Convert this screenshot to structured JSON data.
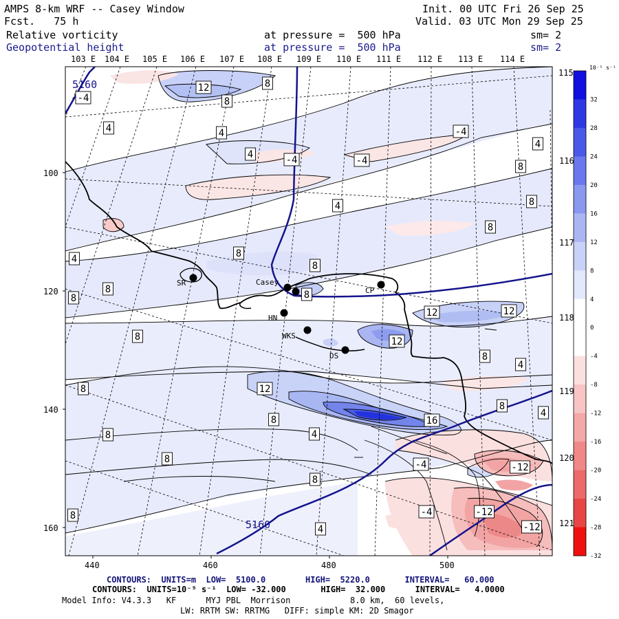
{
  "header": {
    "model": "AMPS 8-km WRF -- Casey Window",
    "fcst": "Fcst.   75 h",
    "init": "Init. 00 UTC Fri 26 Sep 25",
    "valid": "Valid. 03 UTC Mon 29 Sep 25",
    "field1_name": "Relative vorticity",
    "field1_level": "at pressure =  500 hPa",
    "field1_sm": "sm= 2",
    "field2_name": "Geopotential height",
    "field2_level": "at pressure =  500 hPa",
    "field2_sm": "sm= 2"
  },
  "top_longitudes": [
    "103 E",
    "104 E",
    "105 E",
    "106 E",
    "107 E",
    "108 E",
    "109 E",
    "110 E",
    "111 E",
    "112 E",
    "113 E",
    "114 E",
    "115 E"
  ],
  "right_longitudes": [
    "116 E",
    "117 E",
    "118 E",
    "119 E",
    "120 E",
    "121 E"
  ],
  "x_ticks": [
    440,
    460,
    480,
    500
  ],
  "y_ticks": [
    100,
    120,
    140,
    160
  ],
  "colorbar": {
    "unit": "10⁻⁵ s⁻¹",
    "labels": [
      "32",
      "28",
      "24",
      "20",
      "16",
      "12",
      "8",
      "4",
      "0",
      "-4",
      "-8",
      "-12",
      "-16",
      "-20",
      "-24",
      "-28",
      "-32"
    ],
    "colors": [
      "#1010e0",
      "#2e38e4",
      "#4a58e8",
      "#6a78ec",
      "#8a98f0",
      "#aab6f4",
      "#c8d2f8",
      "#e4e8fc",
      "#ffffff",
      "#ffffff",
      "#fce0e0",
      "#f8c4c4",
      "#f4a8a8",
      "#f08888",
      "#ec6a6a",
      "#e84646",
      "#f01010"
    ]
  },
  "stations": [
    {
      "label": "SR"
    },
    {
      "label": "Casey"
    },
    {
      "label": "CP"
    },
    {
      "label": "HN"
    },
    {
      "label": "WKS"
    },
    {
      "label": "DS"
    }
  ],
  "height_labels": [
    "5160",
    "5160"
  ],
  "contour_labels": [
    "12",
    "8",
    "-4",
    "4",
    "8",
    "-4",
    "-4",
    "4",
    "-4",
    "4",
    "8",
    "8",
    "4",
    "8",
    "4",
    "8",
    "8",
    "8",
    "8",
    "8",
    "12",
    "12",
    "12",
    "12",
    "8",
    "4",
    "8",
    "12",
    "8",
    "8",
    "4",
    "8",
    "16",
    "4",
    "8",
    "-4",
    "-12",
    "-4",
    "-12",
    "-12",
    "8",
    "4",
    "4"
  ],
  "footer": {
    "line1": "CONTOURS:  UNITS=m  LOW=  5100.0        HIGH=  5220.0       INTERVAL=   60.000",
    "line2": "CONTOURS:  UNITS=10⁻⁵ s⁻¹  LOW= -32.000       HIGH=  32.000      INTERVAL=   4.0000",
    "line3": "Model Info: V4.3.3   KF      MYJ PBL  Morrison            8.0 km,  60 levels,",
    "line4": "LW: RRTM SW: RRTMG   DIFF: simple KM: 2D Smagor"
  }
}
